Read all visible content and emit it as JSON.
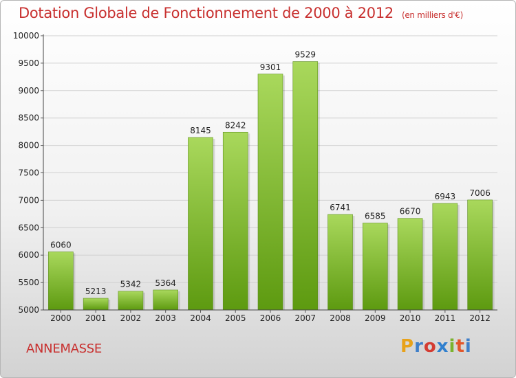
{
  "header": {
    "title": "Dotation Globale de Fonctionnement de 2000 à 2012",
    "subtitle": "(en milliers d'€)"
  },
  "footer": {
    "place": "ANNEMASSE",
    "logo_text": "Proxiti"
  },
  "logo_colors": [
    "#e8a21a",
    "#3f7fc9",
    "#d43c32",
    "#2f7fce",
    "#7bb32e",
    "#e2562b",
    "#3f7fc9"
  ],
  "colors": {
    "title": "#c8302f",
    "bar_top": "#a9d85c",
    "bar_bottom": "#5d9a10",
    "grid": "#d0d0d0"
  },
  "chart_data": {
    "type": "bar",
    "title": "Dotation Globale de Fonctionnement de 2000 à 2012",
    "subtitle": "(en milliers d'€)",
    "categories": [
      "2000",
      "2001",
      "2002",
      "2003",
      "2004",
      "2005",
      "2006",
      "2007",
      "2008",
      "2009",
      "2010",
      "2011",
      "2012"
    ],
    "values": [
      6060,
      5213,
      5342,
      5364,
      8145,
      8242,
      9301,
      9529,
      6741,
      6585,
      6670,
      6943,
      7006
    ],
    "ylim": [
      5000,
      10000
    ],
    "yticks": [
      5000,
      5500,
      6000,
      6500,
      7000,
      7500,
      8000,
      8500,
      9000,
      9500,
      10000
    ],
    "grid": true,
    "data_labels": true
  }
}
